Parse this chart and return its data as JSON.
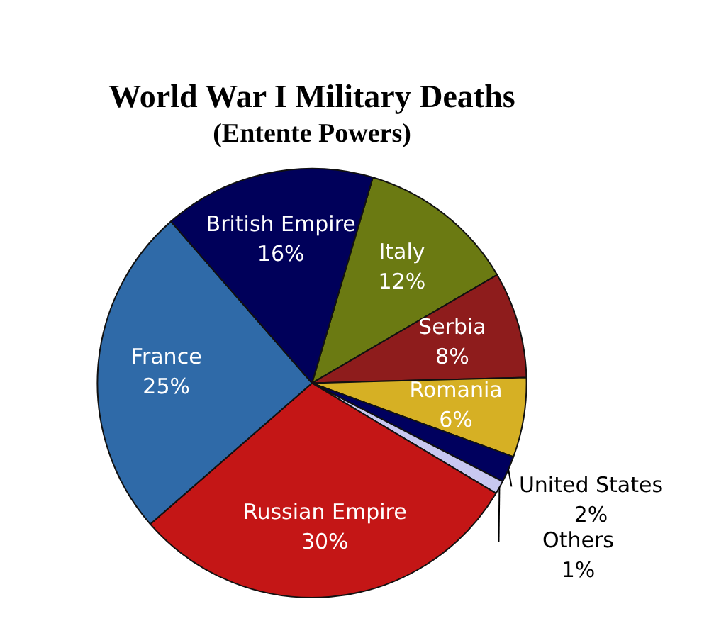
{
  "chart_data": {
    "type": "pie",
    "title": "World War I Military Deaths",
    "subtitle": "(Entente Powers)",
    "categories": [
      "Italy",
      "Serbia",
      "Romania",
      "United States",
      "Others",
      "Russian Empire",
      "France",
      "British Empire"
    ],
    "values": [
      12,
      8,
      6,
      2,
      1,
      30,
      25,
      16
    ],
    "colors": [
      "#6b7a12",
      "#8e1c1c",
      "#d6b024",
      "#00005e",
      "#c8c8f0",
      "#c41616",
      "#2f6aa8",
      "#00005a"
    ],
    "value_labels": [
      "12%",
      "8%",
      "6%",
      "2%",
      "1%",
      "30%",
      "25%",
      "16%"
    ],
    "legend": false
  }
}
